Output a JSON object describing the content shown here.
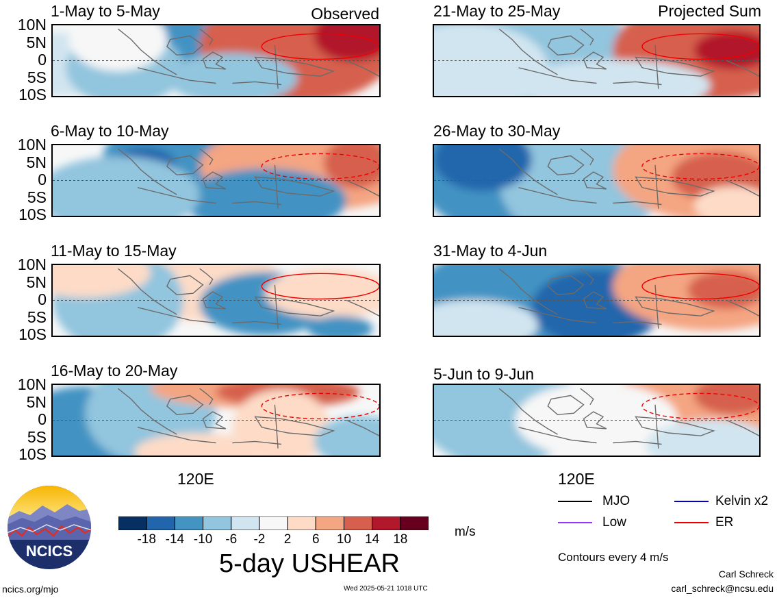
{
  "chart_data": {
    "type": "heatmap",
    "title": "5-day USHEAR",
    "units": "m/s",
    "contour_note": "Contours every 4 m/s",
    "x_tick_labels": [
      "120E",
      "120E"
    ],
    "y_tick_labels": [
      "10N",
      "5N",
      "0",
      "5S",
      "10S"
    ],
    "colorbar_levels": [
      "-18",
      "-14",
      "-10",
      "-6",
      "-2",
      "2",
      "6",
      "10",
      "14",
      "18"
    ],
    "colorbar_colors": [
      "#053061",
      "#2166ac",
      "#4393c3",
      "#92c5de",
      "#d1e5f0",
      "#f7f7f7",
      "#fddbc7",
      "#f4a582",
      "#d6604d",
      "#b2182b",
      "#67001f"
    ],
    "column_tags": [
      "Observed",
      "Projected Sum"
    ],
    "panels": [
      {
        "title": "1-May to 5-May",
        "column": "Observed"
      },
      {
        "title": "6-May to 10-May",
        "column": "Observed"
      },
      {
        "title": "11-May to 15-May",
        "column": "Observed"
      },
      {
        "title": "16-May to 20-May",
        "column": "Observed"
      },
      {
        "title": "21-May to 25-May",
        "column": "Projected Sum"
      },
      {
        "title": "26-May to 30-May",
        "column": "Projected Sum"
      },
      {
        "title": "31-May to 4-Jun",
        "column": "Projected Sum"
      },
      {
        "title": "5-Jun to 9-Jun",
        "column": "Projected Sum"
      }
    ],
    "legend": [
      {
        "label": "MJO",
        "color": "#000000"
      },
      {
        "label": "Kelvin x2",
        "color": "#0000cc"
      },
      {
        "label": "Low",
        "color": "#9933ff"
      },
      {
        "label": "ER",
        "color": "#ee0000"
      }
    ]
  },
  "logo_text": "NCICS",
  "footer": {
    "left": "ncics.org/mjo",
    "center": "Wed 2025-05-21 1018 UTC",
    "author": "Carl Schreck",
    "email": "carl_schreck@ncsu.edu"
  }
}
